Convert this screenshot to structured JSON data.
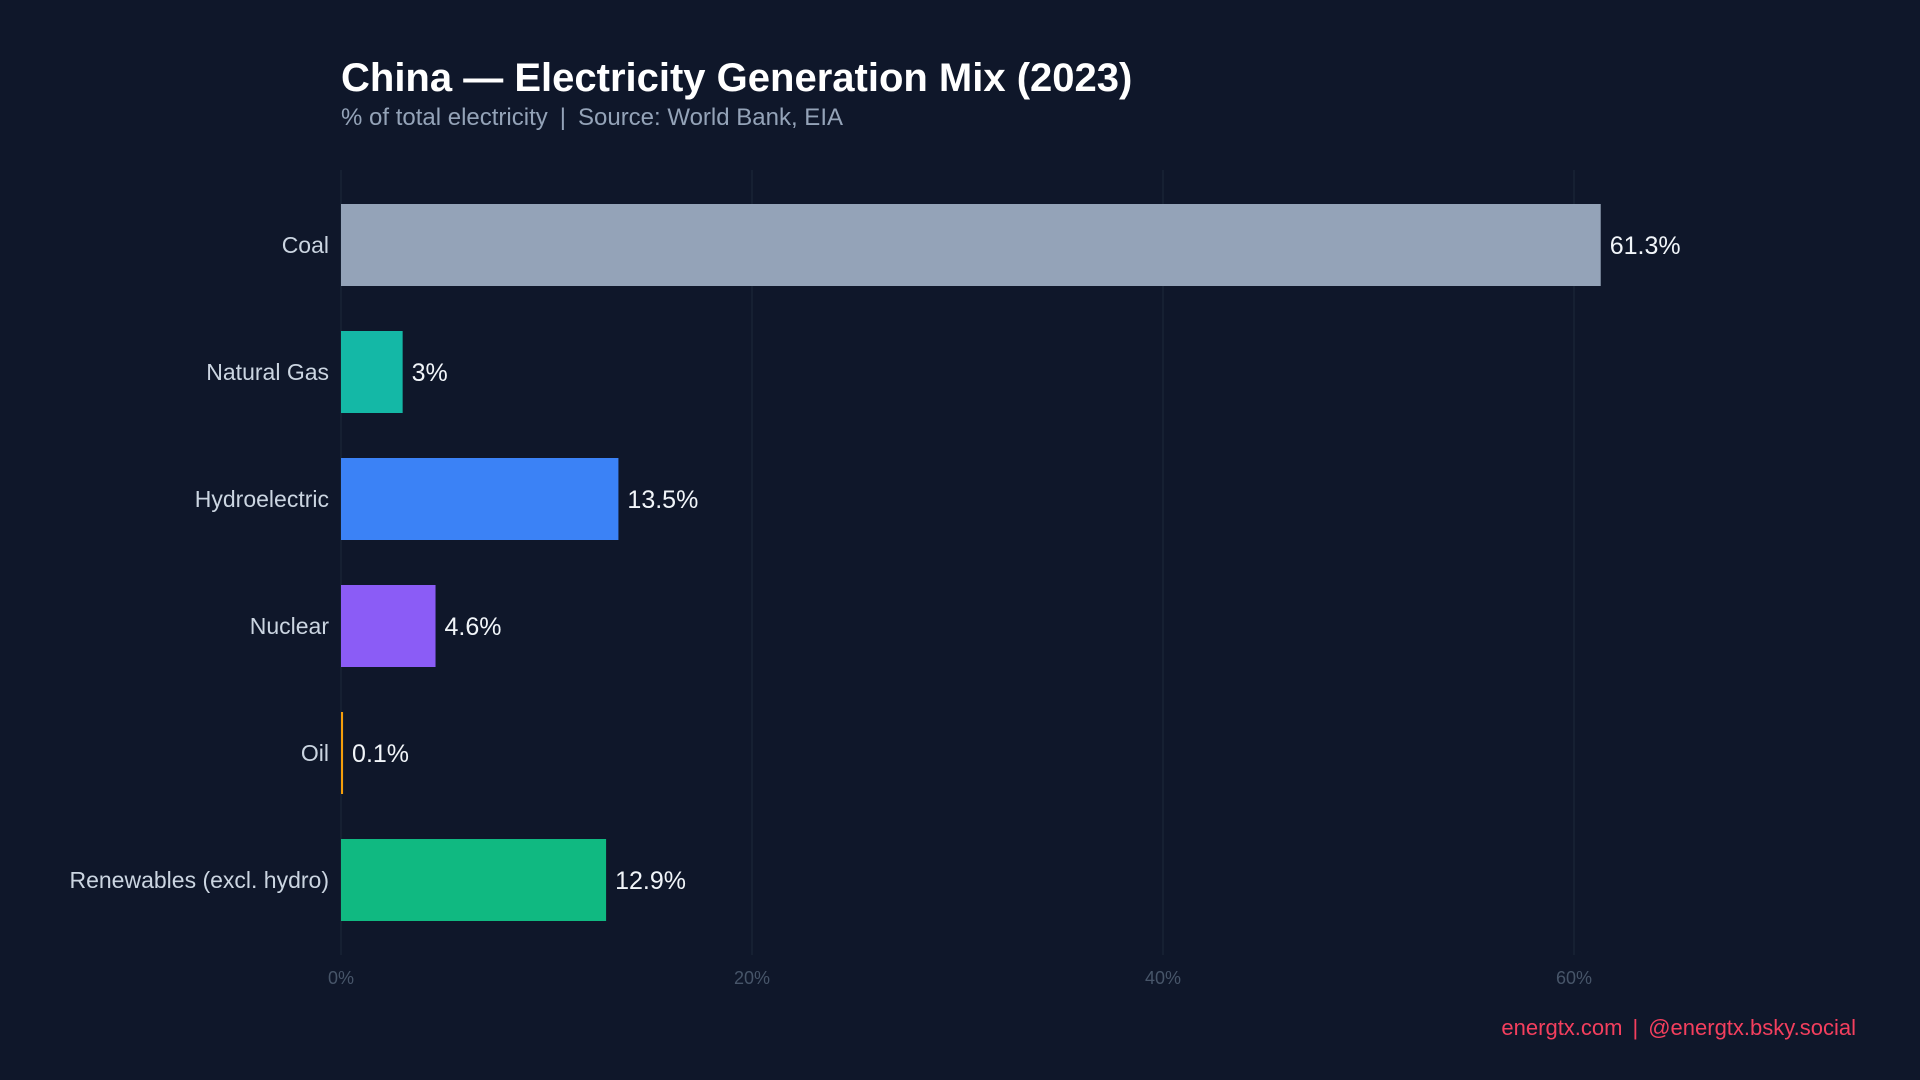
{
  "header": {
    "title": "China — Electricity Generation Mix (2023)",
    "subtitle_left": "% of total electricity",
    "subtitle_sep": "|",
    "subtitle_right": "Source: World Bank, EIA"
  },
  "footer": {
    "site": "energtx.com",
    "sep": "|",
    "social": "@energtx.bsky.social",
    "color": "#f43f5e"
  },
  "chart_data": {
    "type": "bar",
    "orientation": "horizontal",
    "title": "China — Electricity Generation Mix (2023)",
    "subtitle": "% of total electricity | Source: World Bank, EIA",
    "categories": [
      "Coal",
      "Natural Gas",
      "Hydroelectric",
      "Nuclear",
      "Oil",
      "Renewables (excl. hydro)"
    ],
    "values": [
      61.3,
      3,
      13.5,
      4.6,
      0.1,
      12.9
    ],
    "value_labels": [
      "61.3%",
      "3%",
      "13.5%",
      "4.6%",
      "0.1%",
      "12.9%"
    ],
    "colors": [
      "#94a3b8",
      "#14b8a6",
      "#3b82f6",
      "#8b5cf6",
      "#f59e0b",
      "#10b981"
    ],
    "xlim": [
      0,
      73
    ],
    "xticks": [
      0,
      20,
      40,
      60
    ],
    "xtick_labels": [
      "0%",
      "20%",
      "40%",
      "60%"
    ],
    "grid": "vertical",
    "xlabel": "",
    "ylabel": ""
  }
}
